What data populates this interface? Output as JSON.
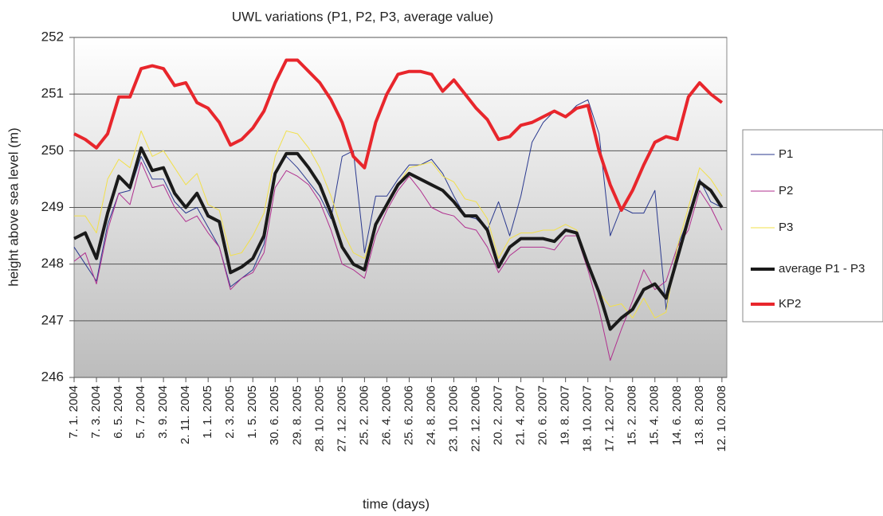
{
  "chart_data": {
    "type": "line",
    "title": "UWL variations (P1, P2, P3, average value)",
    "x_label": "time (days)",
    "y_label": "height above sea level (m)",
    "categories": [
      "7. 1. 2004",
      null,
      "7. 3. 2004",
      null,
      "6. 5. 2004",
      null,
      "5. 7. 2004",
      null,
      "3. 9. 2004",
      null,
      "2. 11. 2004",
      null,
      "1. 1. 2005",
      null,
      "2. 3. 2005",
      null,
      "1. 5. 2005",
      null,
      "30. 6. 2005",
      null,
      "29. 8. 2005",
      null,
      "28. 10. 2005",
      null,
      "27. 12. 2005",
      null,
      "25. 2. 2006",
      null,
      "26. 4. 2006",
      null,
      "25. 6. 2006",
      null,
      "24. 8. 2006",
      null,
      "23. 10. 2006",
      null,
      "22. 12. 2006",
      null,
      "20. 2. 2007",
      null,
      "21. 4. 2007",
      null,
      "20. 6. 2007",
      null,
      "19. 8. 2007",
      null,
      "18. 10. 2007",
      null,
      "17. 12. 2007",
      null,
      "15. 2. 2008",
      null,
      "15. 4. 2008",
      null,
      "14. 6. 2008",
      null,
      "13. 8. 2008",
      null,
      "12. 10. 2008"
    ],
    "series": [
      {
        "name": "P1",
        "color": "#2b3a8f",
        "width": 1,
        "values": [
          248.3,
          248.0,
          247.7,
          248.7,
          249.25,
          249.3,
          249.9,
          249.5,
          249.5,
          249.1,
          248.9,
          249.0,
          248.65,
          248.3,
          247.6,
          247.75,
          247.9,
          248.35,
          249.6,
          249.9,
          249.7,
          249.45,
          249.2,
          248.8,
          249.9,
          250.0,
          248.2,
          249.2,
          249.2,
          249.5,
          249.75,
          249.75,
          249.85,
          249.6,
          249.2,
          248.85,
          248.8,
          248.6,
          249.1,
          248.5,
          249.2,
          250.15,
          250.5,
          250.7,
          250.6,
          250.8,
          250.9,
          250.3,
          248.5,
          249.0,
          248.9,
          248.9,
          249.3,
          247.2,
          248.3,
          248.8,
          249.5,
          249.1,
          249.0
        ]
      },
      {
        "name": "P2",
        "color": "#b0308f",
        "width": 1,
        "values": [
          248.05,
          248.2,
          247.65,
          248.6,
          249.25,
          249.05,
          249.8,
          249.35,
          249.4,
          249.0,
          248.75,
          248.85,
          248.55,
          248.3,
          247.55,
          247.75,
          247.85,
          248.2,
          249.35,
          249.65,
          249.55,
          249.4,
          249.1,
          248.6,
          248.0,
          247.9,
          247.75,
          248.5,
          248.95,
          249.3,
          249.55,
          249.3,
          249.0,
          248.9,
          248.85,
          248.65,
          248.6,
          248.3,
          247.85,
          248.15,
          248.3,
          248.3,
          248.3,
          248.25,
          248.5,
          248.5,
          247.9,
          247.2,
          246.3,
          246.85,
          247.35,
          247.9,
          247.55,
          247.7,
          248.3,
          248.6,
          249.3,
          249.0,
          248.6
        ]
      },
      {
        "name": "P3",
        "color": "#f2e04a",
        "width": 1,
        "values": [
          248.85,
          248.85,
          248.55,
          249.5,
          249.85,
          249.7,
          250.35,
          249.9,
          250.0,
          249.7,
          249.4,
          249.6,
          249.05,
          248.95,
          248.15,
          248.2,
          248.5,
          248.9,
          249.9,
          250.35,
          250.3,
          250.05,
          249.7,
          249.2,
          248.6,
          248.2,
          248.1,
          248.7,
          249.0,
          249.4,
          249.7,
          249.75,
          249.8,
          249.55,
          249.45,
          249.15,
          249.1,
          248.8,
          248.1,
          248.45,
          248.55,
          248.55,
          248.6,
          248.6,
          248.7,
          248.6,
          248.0,
          247.5,
          247.25,
          247.3,
          247.05,
          247.4,
          247.05,
          247.15,
          248.3,
          249.0,
          249.7,
          249.5,
          249.2
        ]
      },
      {
        "name": "average P1 - P3",
        "color": "#1a1a1a",
        "width": 4,
        "values": [
          248.45,
          248.55,
          248.1,
          248.9,
          249.55,
          249.35,
          250.05,
          249.65,
          249.7,
          249.25,
          249.0,
          249.25,
          248.85,
          248.75,
          247.85,
          247.95,
          248.1,
          248.5,
          249.6,
          249.95,
          249.95,
          249.7,
          249.4,
          248.9,
          248.3,
          248.0,
          247.9,
          248.7,
          249.05,
          249.4,
          249.6,
          249.5,
          249.4,
          249.3,
          249.1,
          248.85,
          248.85,
          248.6,
          247.95,
          248.3,
          248.45,
          248.45,
          248.45,
          248.4,
          248.6,
          248.55,
          248.0,
          247.5,
          246.85,
          247.05,
          247.2,
          247.55,
          247.65,
          247.4,
          248.1,
          248.8,
          249.45,
          249.3,
          249.0
        ]
      },
      {
        "name": "KP2",
        "color": "#e8262c",
        "width": 4,
        "values": [
          250.3,
          250.2,
          250.05,
          250.3,
          250.95,
          250.95,
          251.45,
          251.5,
          251.45,
          251.15,
          251.2,
          250.85,
          250.75,
          250.5,
          250.1,
          250.2,
          250.4,
          250.7,
          251.2,
          251.6,
          251.6,
          251.4,
          251.2,
          250.9,
          250.5,
          249.9,
          249.7,
          250.5,
          251.0,
          251.35,
          251.4,
          251.4,
          251.35,
          251.05,
          251.25,
          251.0,
          250.75,
          250.55,
          250.2,
          250.25,
          250.45,
          250.5,
          250.6,
          250.7,
          250.6,
          250.75,
          250.8,
          250.0,
          249.4,
          248.95,
          249.3,
          249.75,
          250.15,
          250.25,
          250.2,
          250.95,
          251.2,
          251.0,
          250.85
        ]
      }
    ],
    "ylim": [
      246,
      252
    ],
    "yticks": [
      246,
      247,
      248,
      249,
      250,
      251,
      252
    ],
    "grid": true,
    "legend": "right"
  }
}
